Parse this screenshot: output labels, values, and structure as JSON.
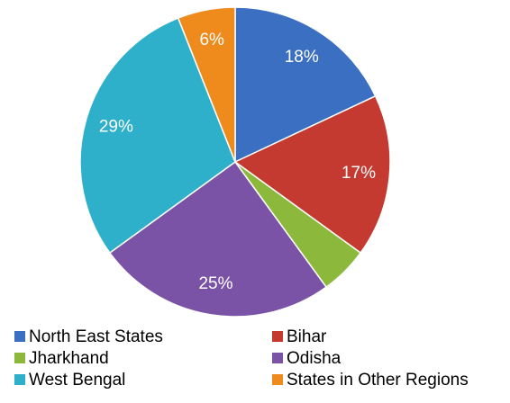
{
  "chart_data": {
    "type": "pie",
    "categories": [
      "North East States",
      "Bihar",
      "Jharkhand",
      "Odisha",
      "West Bengal",
      "States in Other Regions"
    ],
    "values": [
      18,
      17,
      5,
      25,
      29,
      6
    ],
    "value_labels": [
      "18%",
      "17%",
      null,
      "25%",
      "29%",
      "6%"
    ],
    "colors": [
      "#3b6fc1",
      "#c43a30",
      "#8cb83c",
      "#7a52a6",
      "#2eb0cb",
      "#ef8a1d"
    ],
    "legend": "bottom"
  }
}
